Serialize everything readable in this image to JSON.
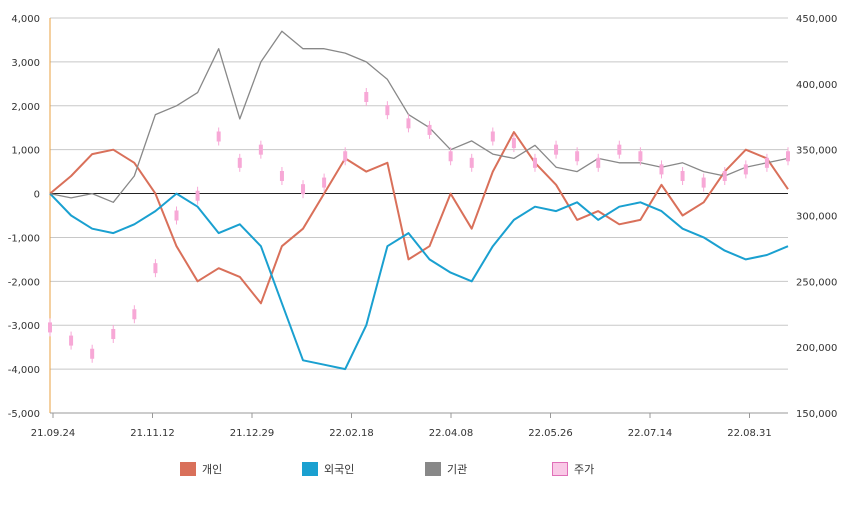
{
  "chart_data": {
    "type": "line",
    "x_ticks": [
      "21.09.24",
      "21.11.12",
      "21.12.29",
      "22.02.18",
      "22.04.08",
      "22.05.26",
      "22.07.14",
      "22.08.31"
    ],
    "y_left_ticks": [
      "4,000",
      "3,000",
      "2,000",
      "1,000",
      "0",
      "-1,000",
      "-2,000",
      "-3,000",
      "-4,000",
      "-5,000"
    ],
    "y_right_ticks": [
      "450,000",
      "400,000",
      "350,000",
      "300,000",
      "250,000",
      "200,000",
      "150,000"
    ],
    "ylim_left": [
      -5000,
      4000
    ],
    "ylim_right": [
      150000,
      450000
    ],
    "series": [
      {
        "name": "개인",
        "color": "#d9705a",
        "axis": "left",
        "values": [
          0,
          400,
          900,
          1000,
          700,
          0,
          -1200,
          -2000,
          -1700,
          -1900,
          -2500,
          -1200,
          -800,
          0,
          800,
          500,
          700,
          -1500,
          -1200,
          0,
          -800,
          500,
          1400,
          700,
          200,
          -600,
          -400,
          -700,
          -600,
          200,
          -500,
          -200,
          500,
          1000,
          800,
          100
        ]
      },
      {
        "name": "외국인",
        "color": "#1aa0d0",
        "axis": "left",
        "values": [
          0,
          -500,
          -800,
          -900,
          -700,
          -400,
          0,
          -300,
          -900,
          -700,
          -1200,
          -2500,
          -3800,
          -3900,
          -4000,
          -3000,
          -1200,
          -900,
          -1500,
          -1800,
          -2000,
          -1200,
          -600,
          -300,
          -400,
          -200,
          -600,
          -300,
          -200,
          -400,
          -800,
          -1000,
          -1300,
          -1500,
          -1400,
          -1200
        ]
      },
      {
        "name": "기관",
        "color": "#888888",
        "axis": "left",
        "values": [
          0,
          -100,
          0,
          -200,
          400,
          1800,
          2000,
          2300,
          3300,
          1700,
          3000,
          3700,
          3300,
          3300,
          3200,
          3000,
          2600,
          1800,
          1500,
          1000,
          1200,
          900,
          800,
          1100,
          600,
          500,
          800,
          700,
          700,
          600,
          700,
          500,
          400,
          600,
          700,
          800
        ]
      },
      {
        "name": "주가",
        "color": "#f7a8d6",
        "axis": "right",
        "values": [
          215000,
          205000,
          195000,
          210000,
          225000,
          260000,
          300000,
          315000,
          360000,
          340000,
          350000,
          330000,
          320000,
          325000,
          345000,
          390000,
          380000,
          370000,
          365000,
          345000,
          340000,
          360000,
          355000,
          340000,
          350000,
          345000,
          340000,
          350000,
          345000,
          335000,
          330000,
          325000,
          330000,
          335000,
          340000,
          345000
        ]
      }
    ],
    "legend_position": "bottom",
    "grid": true
  }
}
